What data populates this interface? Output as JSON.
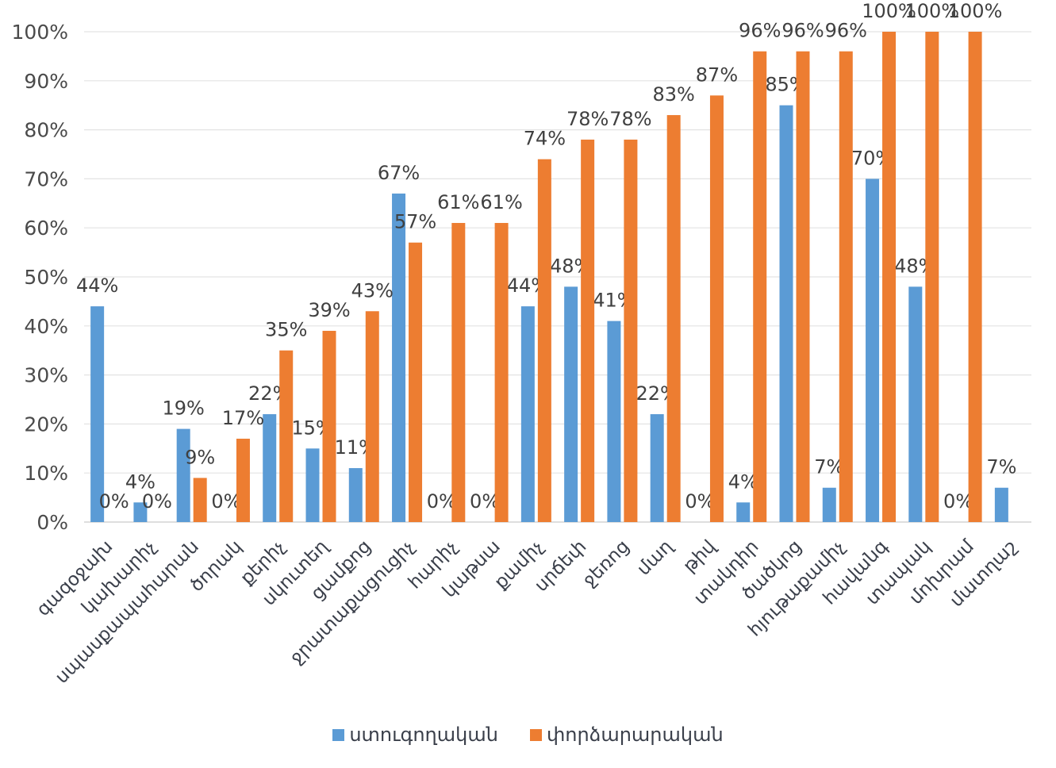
{
  "chart_data": {
    "type": "bar",
    "title": "",
    "xlabel": "",
    "ylabel": "",
    "ylim": [
      0,
      100
    ],
    "y_ticks": [
      "0%",
      "10%",
      "20%",
      "30%",
      "40%",
      "50%",
      "60%",
      "70%",
      "80%",
      "90%",
      "100%"
    ],
    "grid": true,
    "legend_position": "bottom",
    "categories": [
      "գազօջախ",
      "կախարիչ",
      "սպասքապահարան",
      "ծորակ",
      "քերիչ",
      "սկուտեղ",
      "ցամքոց",
      "ջրատաքացուցիչ",
      "հարիչ",
      "կաթսա",
      "քամիչ",
      "սրճեփ",
      "ջեռոց",
      "մաղ",
      "թիվ",
      "տակդիր",
      "ծածկոց",
      "հյութաքամիչ",
      "հավանգ",
      "տապակ",
      "մոխրամ",
      "մատղաշ"
    ],
    "series": [
      {
        "name": "ստուգողական",
        "color": "#5b9bd5",
        "values": [
          44,
          4,
          19,
          0,
          22,
          15,
          11,
          67,
          0,
          0,
          44,
          48,
          41,
          22,
          0,
          4,
          85,
          7,
          70,
          48,
          0,
          7
        ],
        "labels": [
          "44%",
          "4%",
          "19%",
          "0%",
          "22%",
          "15%",
          "11%",
          "67%",
          "0%",
          "0%",
          "44%",
          "48%",
          "41%",
          "22%",
          "0%",
          "4%",
          "85%",
          "7%",
          "70%",
          "48%",
          "0%",
          "7%"
        ]
      },
      {
        "name": "փորձարարական",
        "color": "#ed7d31",
        "values": [
          0,
          0,
          9,
          17,
          35,
          39,
          43,
          57,
          61,
          61,
          74,
          78,
          78,
          83,
          87,
          96,
          96,
          96,
          100,
          100,
          100,
          null
        ],
        "labels": [
          "0%",
          "0%",
          "9%",
          "17%",
          "35%",
          "39%",
          "43%",
          "57%",
          "61%",
          "61%",
          "74%",
          "78%",
          "78%",
          "83%",
          "87%",
          "96%",
          "96%",
          "96%",
          "100%",
          "100%",
          "100%",
          ""
        ]
      }
    ]
  }
}
